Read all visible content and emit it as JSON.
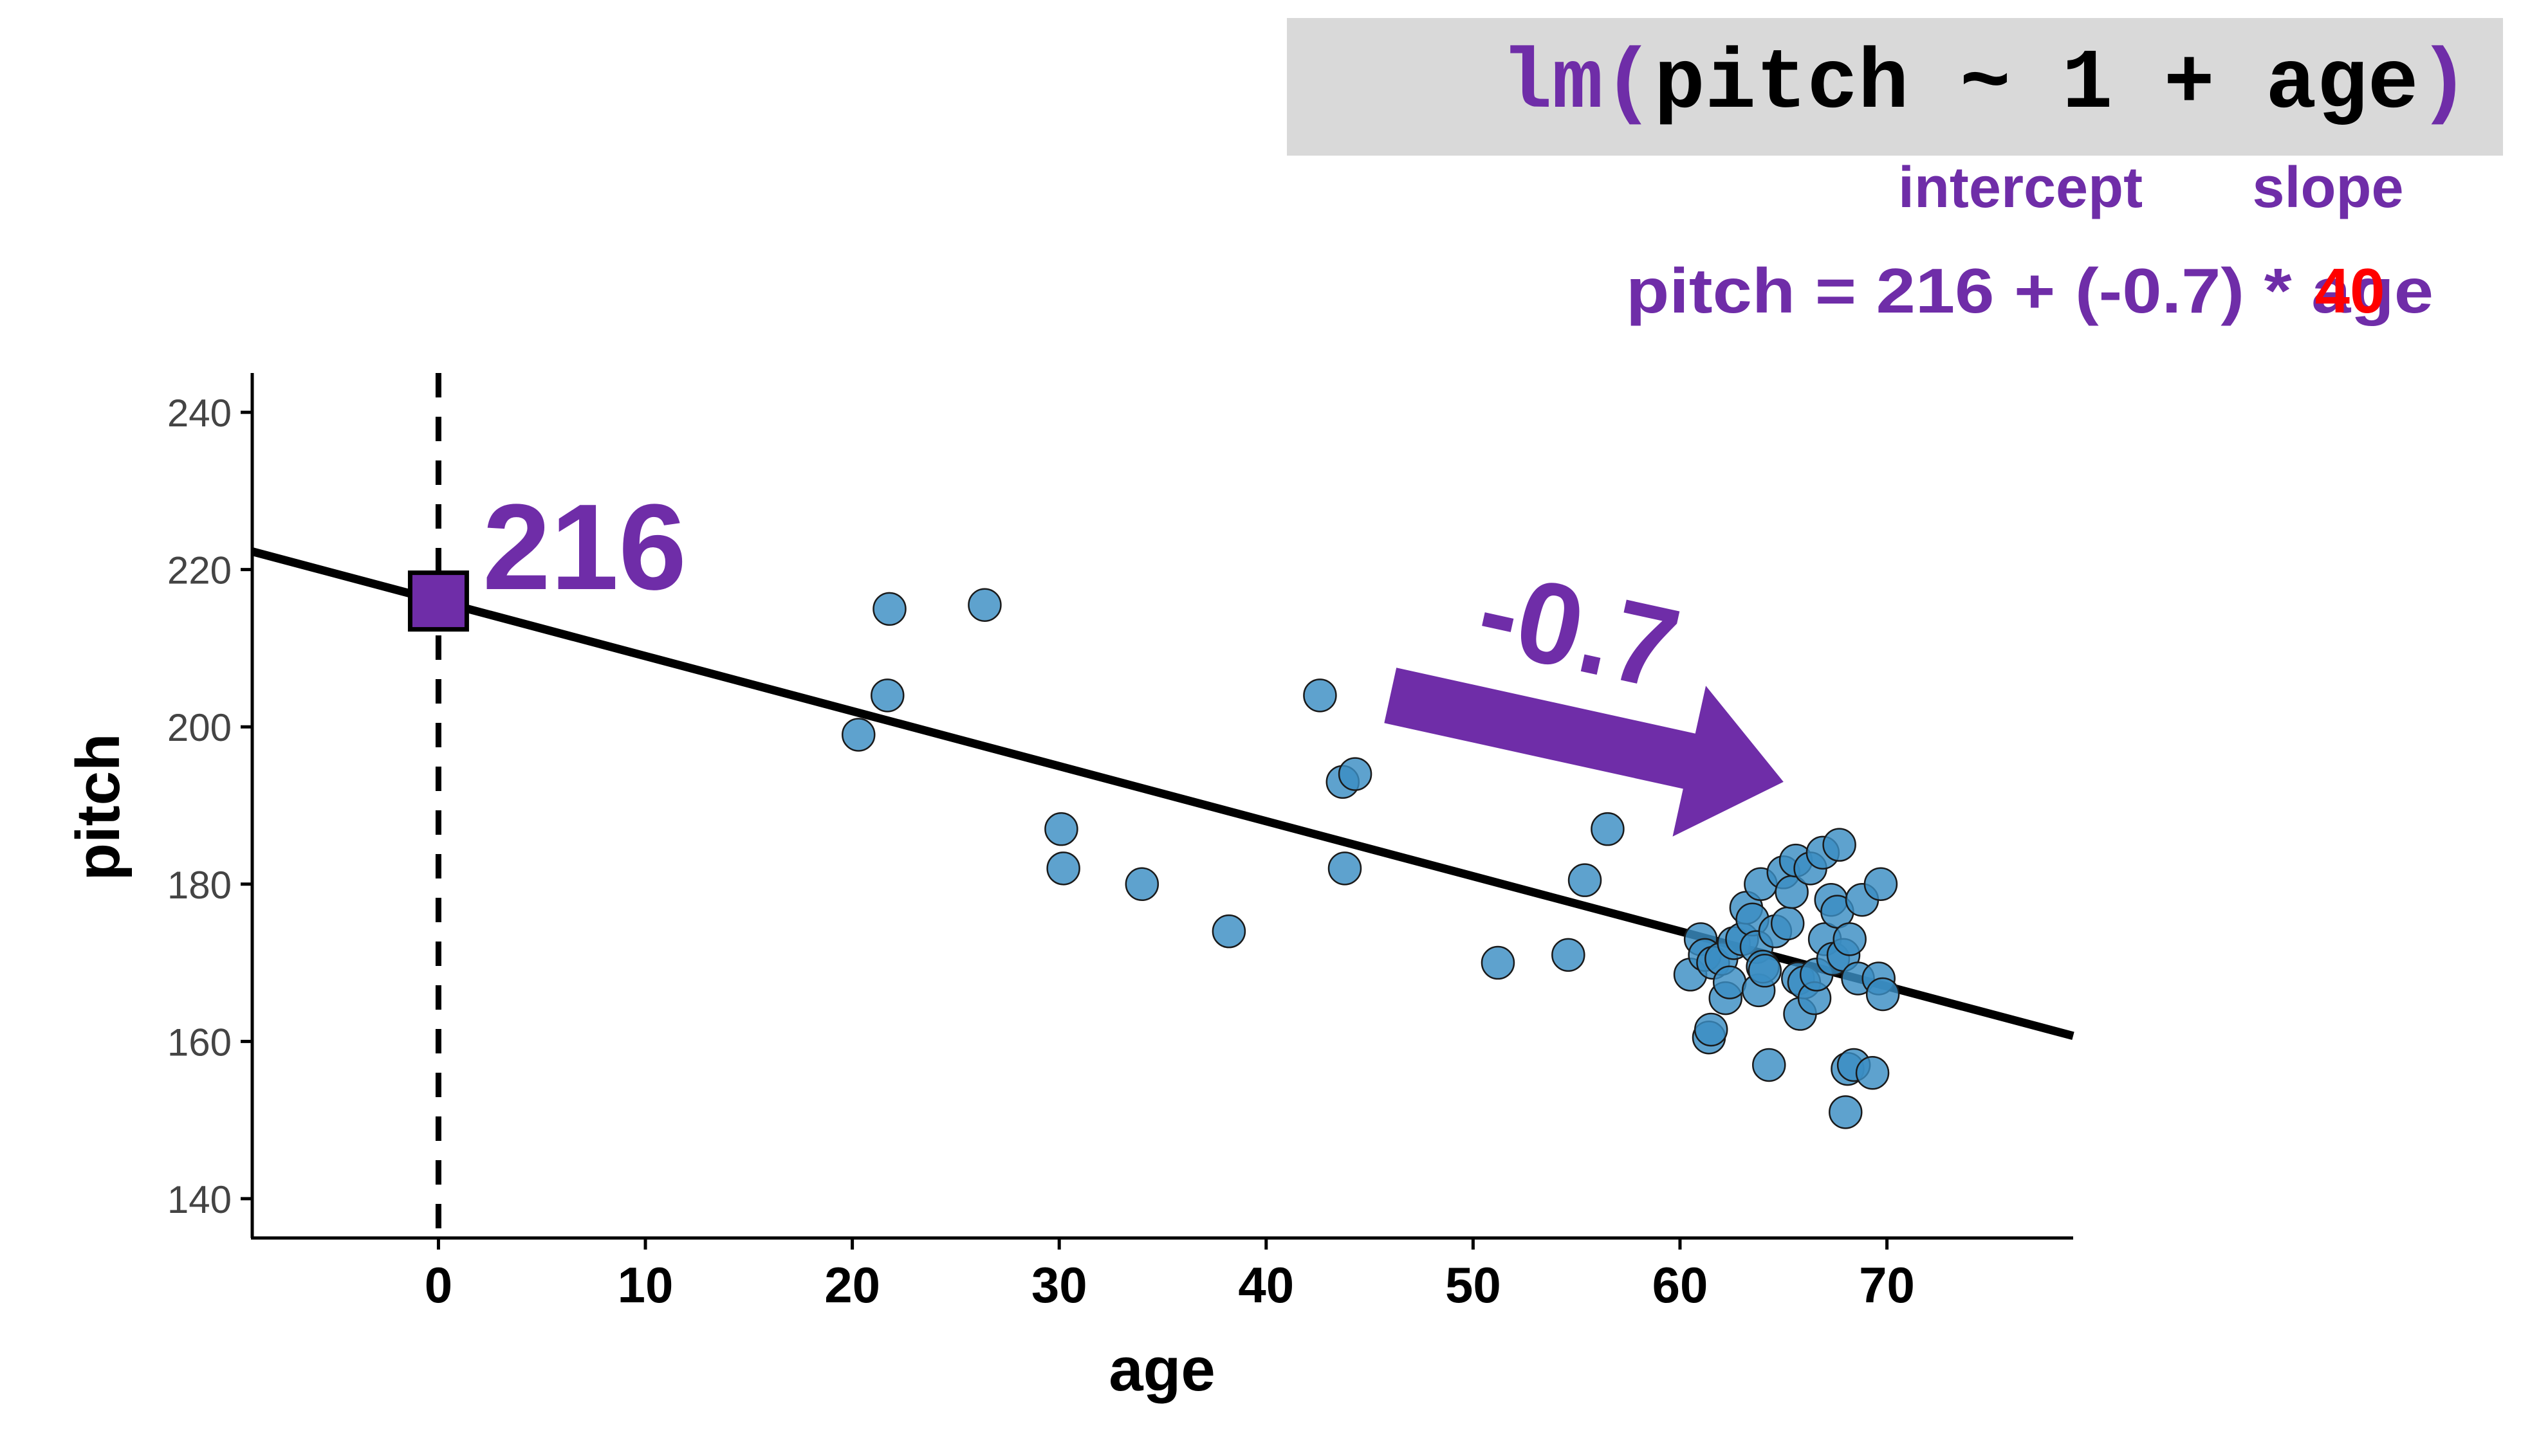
{
  "formula": {
    "func": "lm",
    "open_paren": "(",
    "body": "pitch ~ 1 + age",
    "close_paren": ")"
  },
  "labels": {
    "intercept": "intercept",
    "slope": "slope"
  },
  "equation": {
    "text": "pitch = 216 + (-0.7) * age",
    "overlay_value": "40"
  },
  "annotations": {
    "intercept_value": "216",
    "slope_value": "-0.7"
  },
  "colors": {
    "accent": "#6f2da8",
    "points": "#3b8dc3",
    "overlay": "#ff0000",
    "formula_box": "#d9d9d9",
    "line": "#000000"
  },
  "chart_data": {
    "type": "scatter",
    "xlabel": "age",
    "ylabel": "pitch",
    "xlim": [
      -9,
      79
    ],
    "ylim": [
      135,
      245
    ],
    "x_ticks": [
      0,
      10,
      20,
      30,
      40,
      50,
      60,
      70
    ],
    "y_ticks": [
      140,
      160,
      180,
      200,
      220,
      240
    ],
    "regression": {
      "intercept": 216,
      "slope": -0.7
    },
    "intercept_point": {
      "x": 0,
      "y": 216
    },
    "vline_x": 0,
    "arrow": {
      "from": [
        46,
        204
      ],
      "to": [
        65,
        193
      ]
    },
    "grid": false,
    "points": [
      [
        20.3,
        199
      ],
      [
        21.7,
        204
      ],
      [
        21.8,
        215
      ],
      [
        26.4,
        215.5
      ],
      [
        30.1,
        187
      ],
      [
        30.2,
        182
      ],
      [
        34,
        180
      ],
      [
        38.2,
        174
      ],
      [
        42.6,
        204
      ],
      [
        43.7,
        193
      ],
      [
        43.8,
        182
      ],
      [
        44.3,
        194
      ],
      [
        51.2,
        170
      ],
      [
        54.6,
        171
      ],
      [
        55.4,
        180.5
      ],
      [
        56.5,
        187
      ],
      [
        60.5,
        168.5
      ],
      [
        61,
        173
      ],
      [
        61.2,
        171
      ],
      [
        61.4,
        160.5
      ],
      [
        61.5,
        161.5
      ],
      [
        61.6,
        170
      ],
      [
        62,
        170.5
      ],
      [
        62.2,
        165.5
      ],
      [
        62.4,
        167.5
      ],
      [
        62.6,
        172.5
      ],
      [
        63,
        173
      ],
      [
        63.2,
        177
      ],
      [
        63.5,
        175.5
      ],
      [
        63.7,
        172
      ],
      [
        63.8,
        166.5
      ],
      [
        63.9,
        180
      ],
      [
        64,
        169.5
      ],
      [
        64.1,
        169
      ],
      [
        64.3,
        157
      ],
      [
        64.6,
        174
      ],
      [
        65,
        181.5
      ],
      [
        65.2,
        175
      ],
      [
        65.4,
        179
      ],
      [
        65.6,
        183
      ],
      [
        65.7,
        168
      ],
      [
        65.8,
        163.5
      ],
      [
        66,
        167.5
      ],
      [
        66.3,
        182
      ],
      [
        66.5,
        165.5
      ],
      [
        66.6,
        168.5
      ],
      [
        66.9,
        184
      ],
      [
        67,
        173
      ],
      [
        67.3,
        178
      ],
      [
        67.4,
        170.5
      ],
      [
        67.6,
        176.5
      ],
      [
        67.7,
        185
      ],
      [
        67.9,
        171
      ],
      [
        68,
        151
      ],
      [
        68.1,
        156.5
      ],
      [
        68.2,
        173
      ],
      [
        68.4,
        157
      ],
      [
        68.6,
        168
      ],
      [
        68.8,
        178
      ],
      [
        69.3,
        156
      ],
      [
        69.6,
        168
      ],
      [
        69.7,
        180
      ],
      [
        69.8,
        166
      ]
    ]
  }
}
